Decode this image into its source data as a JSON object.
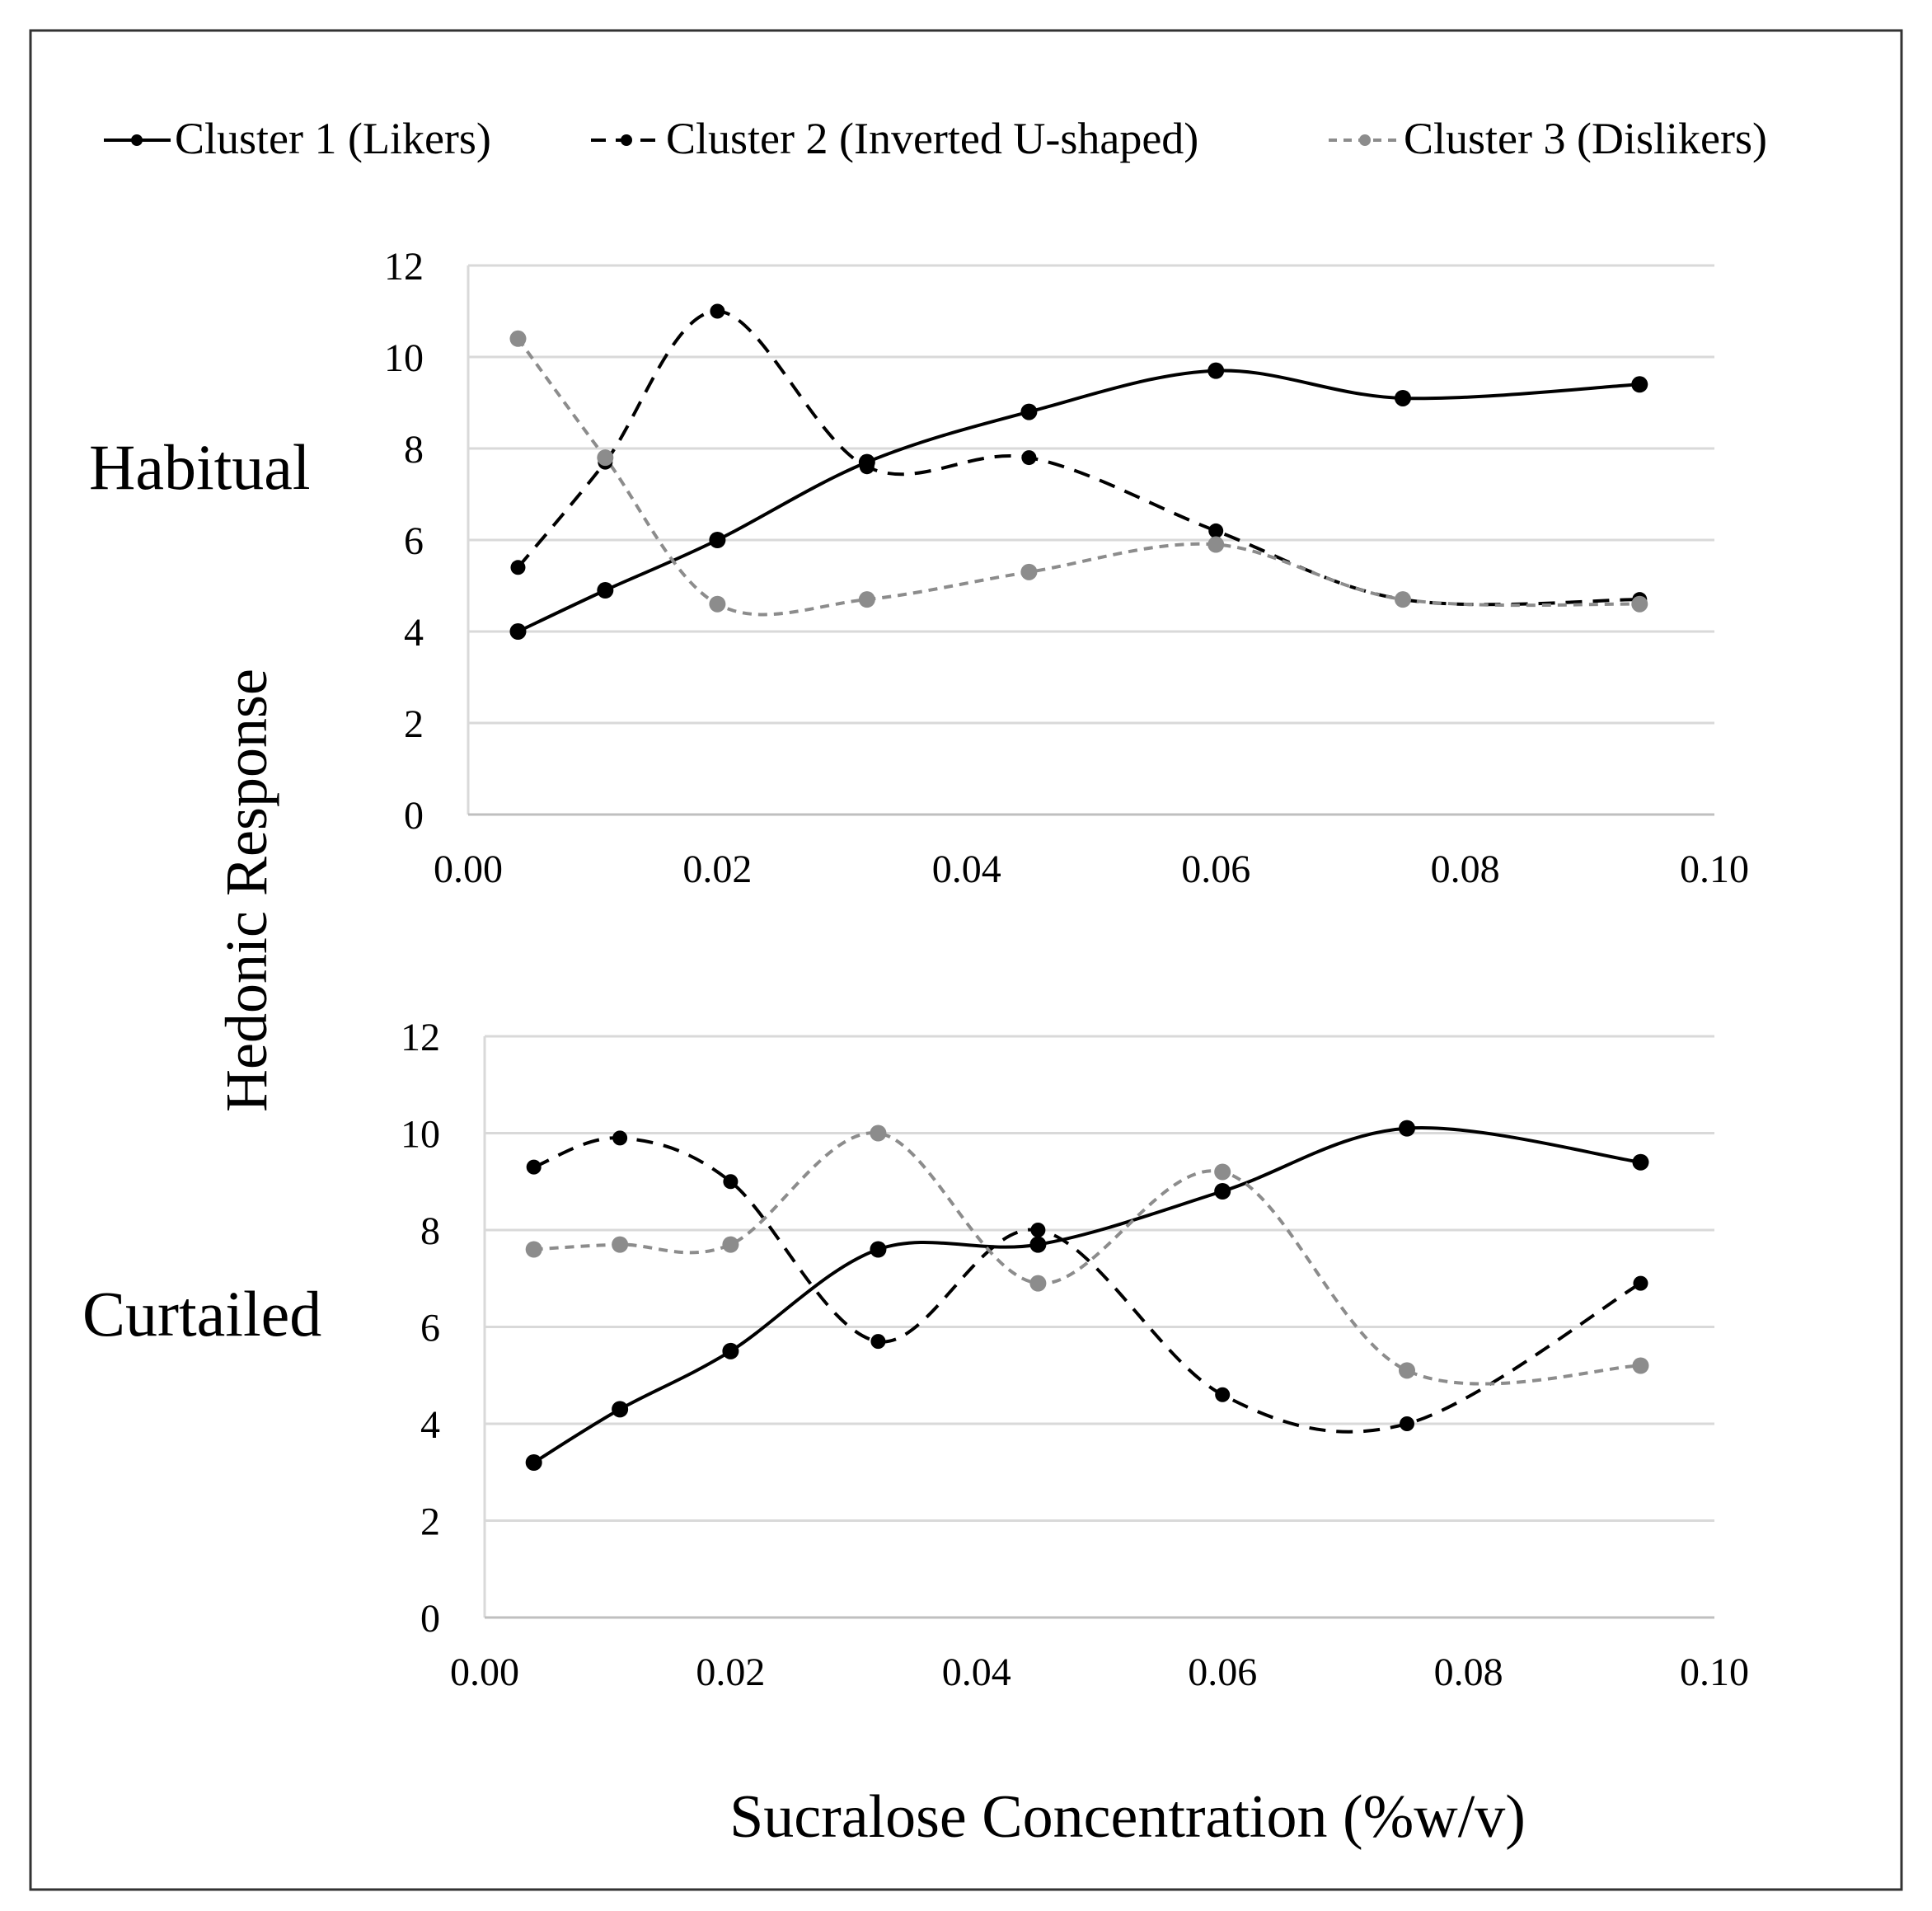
{
  "legend": {
    "position": "top",
    "items": [
      {
        "label": "Cluster 1 (Likers)",
        "color": "#000000",
        "style": "solid"
      },
      {
        "label": "Cluster 2 (Inverted U-shaped)",
        "color": "#000000",
        "style": "dashed"
      },
      {
        "label": "Cluster 3 (Dislikers)",
        "color": "#8c8c8c",
        "style": "dashed"
      }
    ]
  },
  "ylabel": "Hedonic Response",
  "xlabel": "Sucralose Concentration (%w/v)",
  "chart_data": [
    {
      "type": "line",
      "title": "Habitual",
      "xlabel": "Sucralose Concentration (%w/v)",
      "ylabel": "Hedonic Response",
      "xlim": [
        0,
        0.1
      ],
      "ylim": [
        0,
        12
      ],
      "x_ticks": [
        "0.00",
        "0.02",
        "0.04",
        "0.06",
        "0.08",
        "0.10"
      ],
      "y_ticks": [
        "0",
        "2",
        "4",
        "6",
        "8",
        "10",
        "12"
      ],
      "grid": true,
      "x": [
        0.004,
        0.011,
        0.02,
        0.032,
        0.045,
        0.06,
        0.075,
        0.094
      ],
      "series": [
        {
          "name": "Cluster 1 (Likers)",
          "values": [
            4.0,
            4.9,
            6.0,
            7.7,
            8.8,
            9.7,
            9.1,
            9.4
          ]
        },
        {
          "name": "Cluster 2 (Inverted U-shaped)",
          "values": [
            5.4,
            7.7,
            11.0,
            7.6,
            7.8,
            6.2,
            4.7,
            4.7
          ]
        },
        {
          "name": "Cluster 3 (Dislikers)",
          "values": [
            10.4,
            7.8,
            4.6,
            4.7,
            5.3,
            5.9,
            4.7,
            4.6
          ]
        }
      ]
    },
    {
      "type": "line",
      "title": "Curtailed",
      "xlabel": "Sucralose Concentration (%w/v)",
      "ylabel": "Hedonic Response",
      "xlim": [
        0,
        0.1
      ],
      "ylim": [
        0,
        12
      ],
      "x_ticks": [
        "0.00",
        "0.02",
        "0.04",
        "0.06",
        "0.08",
        "0.10"
      ],
      "y_ticks": [
        "0",
        "2",
        "4",
        "6",
        "8",
        "10",
        "12"
      ],
      "grid": true,
      "x": [
        0.004,
        0.011,
        0.02,
        0.032,
        0.045,
        0.06,
        0.075,
        0.094
      ],
      "series": [
        {
          "name": "Cluster 1 (Likers)",
          "values": [
            3.2,
            4.3,
            5.5,
            7.6,
            7.7,
            8.8,
            10.1,
            9.4
          ]
        },
        {
          "name": "Cluster 2 (Inverted U-shaped)",
          "values": [
            9.3,
            9.9,
            9.0,
            5.7,
            8.0,
            4.6,
            4.0,
            6.9
          ]
        },
        {
          "name": "Cluster 3 (Dislikers)",
          "values": [
            7.6,
            7.7,
            7.7,
            10.0,
            6.9,
            9.2,
            5.1,
            5.2
          ]
        }
      ]
    }
  ]
}
